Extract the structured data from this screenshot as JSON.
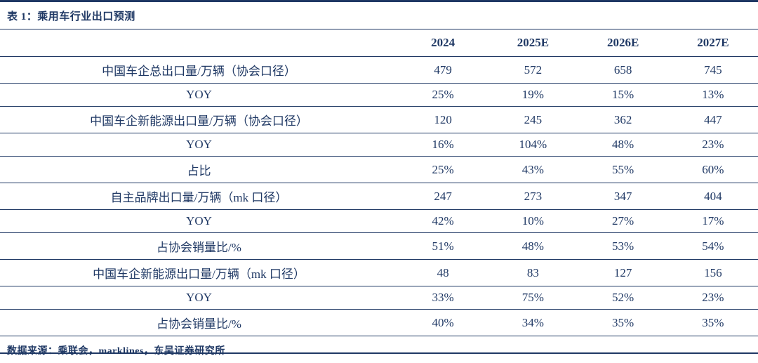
{
  "accent_color": "#1F3864",
  "title": "表 1：乘用车行业出口预测",
  "footer": "数据来源：乘联会，marklines，东吴证券研究所",
  "table": {
    "columns": [
      "2024",
      "2025E",
      "2026E",
      "2027E"
    ],
    "rows": [
      {
        "label": "中国车企总出口量/万辆（协会口径）",
        "values": [
          "479",
          "572",
          "658",
          "745"
        ]
      },
      {
        "label": "YOY",
        "values": [
          "25%",
          "19%",
          "15%",
          "13%"
        ]
      },
      {
        "label": "中国车企新能源出口量/万辆（协会口径）",
        "values": [
          "120",
          "245",
          "362",
          "447"
        ]
      },
      {
        "label": "YOY",
        "values": [
          "16%",
          "104%",
          "48%",
          "23%"
        ]
      },
      {
        "label": "占比",
        "values": [
          "25%",
          "43%",
          "55%",
          "60%"
        ]
      },
      {
        "label": "自主品牌出口量/万辆（mk 口径）",
        "values": [
          "247",
          "273",
          "347",
          "404"
        ]
      },
      {
        "label": "YOY",
        "values": [
          "42%",
          "10%",
          "27%",
          "17%"
        ]
      },
      {
        "label": "占协会销量比/%",
        "values": [
          "51%",
          "48%",
          "53%",
          "54%"
        ]
      },
      {
        "label": "中国车企新能源出口量/万辆（mk 口径）",
        "values": [
          "48",
          "83",
          "127",
          "156"
        ]
      },
      {
        "label": "YOY",
        "values": [
          "33%",
          "75%",
          "52%",
          "23%"
        ]
      },
      {
        "label": "占协会销量比/%",
        "values": [
          "40%",
          "34%",
          "35%",
          "35%"
        ]
      }
    ]
  }
}
